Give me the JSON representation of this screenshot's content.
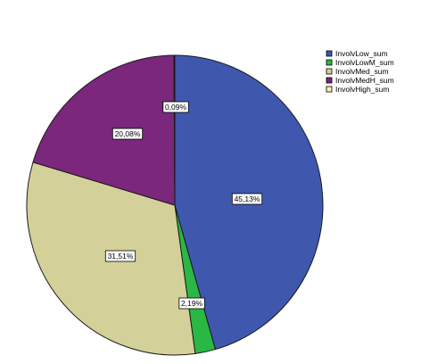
{
  "chart_data": {
    "type": "pie",
    "title": "",
    "start_angle_deg": 0,
    "direction": "clockwise",
    "slices": [
      {
        "name": "InvolvLow_sum",
        "value": 45.13,
        "label": "45,13%",
        "color": "#3f58ae"
      },
      {
        "name": "InvolvLowM_sum",
        "value": 2.19,
        "label": "2,19%",
        "color": "#2ab845"
      },
      {
        "name": "InvolvMed_sum",
        "value": 31.51,
        "label": "31,51%",
        "color": "#d4d09a"
      },
      {
        "name": "InvolvMedH_sum",
        "value": 20.08,
        "label": "20,08%",
        "color": "#7a277c"
      },
      {
        "name": "InvolvHigh_sum",
        "value": 0.09,
        "label": "0,09%",
        "color": "#f8f5a8"
      }
    ],
    "legend": {
      "placement": "top-right",
      "entries": [
        "InvolvLow_sum",
        "InvolvLowM_sum",
        "InvolvMed_sum",
        "InvolvMedH_sum",
        "InvolvHigh_sum"
      ]
    }
  }
}
